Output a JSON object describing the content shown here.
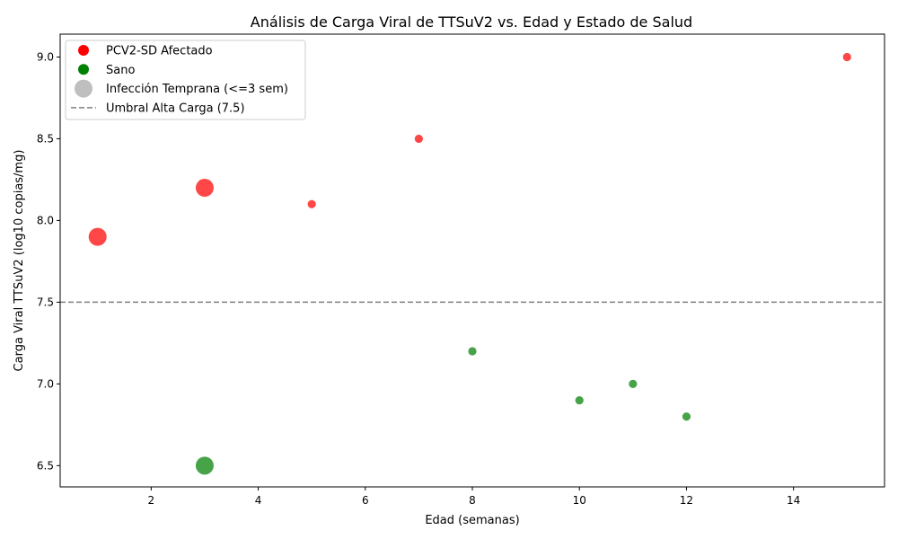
{
  "chart_data": {
    "type": "scatter",
    "title": "Análisis de Carga Viral de TTSuV2 vs. Edad y Estado de Salud",
    "xlabel": "Edad (semanas)",
    "ylabel": "Carga Viral TTSuV2 (log10 copias/mg)",
    "xlim": [
      0.3,
      15.7
    ],
    "ylim": [
      6.37,
      9.14
    ],
    "xticks": [
      "2",
      "4",
      "6",
      "8",
      "10",
      "12",
      "14"
    ],
    "yticks": [
      "6.5",
      "7.0",
      "7.5",
      "8.0",
      "8.5",
      "9.0"
    ],
    "grid": false,
    "legend_position": "top-left",
    "colors": {
      "affected": "#ff0000",
      "healthy": "#008000",
      "early": "#bfbfbf",
      "threshold": "#808080"
    },
    "series": [
      {
        "name": "PCV2-SD Afectado",
        "color": "#ff0000",
        "points": [
          {
            "x": 1,
            "y": 7.9,
            "early": true
          },
          {
            "x": 3,
            "y": 8.2,
            "early": true
          },
          {
            "x": 5,
            "y": 8.1,
            "early": false
          },
          {
            "x": 7,
            "y": 8.5,
            "early": false
          },
          {
            "x": 15,
            "y": 9.0,
            "early": false
          }
        ]
      },
      {
        "name": "Sano",
        "color": "#008000",
        "points": [
          {
            "x": 3,
            "y": 6.5,
            "early": true
          },
          {
            "x": 8,
            "y": 7.2,
            "early": false
          },
          {
            "x": 10,
            "y": 6.9,
            "early": false
          },
          {
            "x": 11,
            "y": 7.0,
            "early": false
          },
          {
            "x": 12,
            "y": 6.8,
            "early": false
          }
        ]
      }
    ],
    "legend": [
      {
        "label": "PCV2-SD Afectado",
        "marker": "dot",
        "color": "#ff0000"
      },
      {
        "label": "Sano",
        "marker": "dot",
        "color": "#008000"
      },
      {
        "label": "Infección Temprana (<=3 sem)",
        "marker": "big-dot",
        "color": "#bfbfbf"
      },
      {
        "label": "Umbral Alta Carga (7.5)",
        "marker": "dashed-line",
        "color": "#808080"
      }
    ],
    "threshold": {
      "y": 7.5,
      "label": "Umbral Alta Carga (7.5)"
    }
  }
}
